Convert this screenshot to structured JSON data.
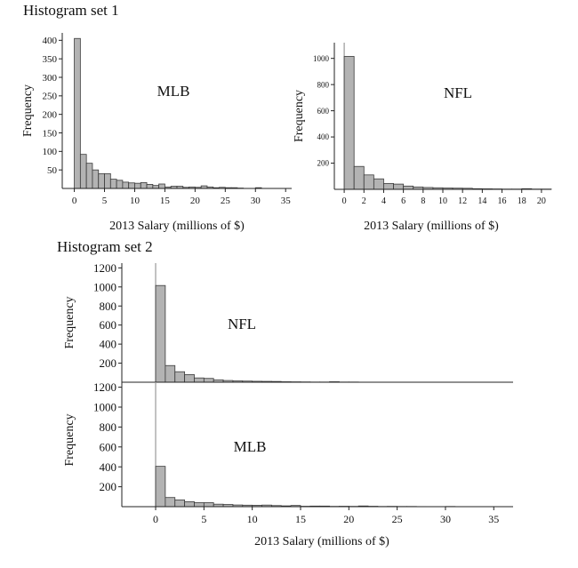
{
  "sets": [
    {
      "title": "Histogram set 1"
    },
    {
      "title": "Histogram set 2"
    }
  ],
  "colors": {
    "bar_fill": "#b3b3b3",
    "bar_stroke": "#3a3a3a",
    "axis": "#222222",
    "zero_line": "#999999"
  },
  "chart_data": [
    {
      "type": "bar",
      "title": "",
      "label": "MLB",
      "xlabel": "2013 Salary (millions of $)",
      "ylabel": "Frequency",
      "bin_width": 1,
      "bin_start": 0,
      "values": [
        405,
        92,
        68,
        50,
        40,
        40,
        25,
        22,
        17,
        15,
        14,
        16,
        11,
        8,
        12,
        4,
        6,
        6,
        3,
        4,
        3,
        7,
        4,
        2,
        3,
        2,
        2,
        1,
        0,
        0,
        2,
        0,
        0,
        0,
        0,
        0
      ],
      "xlim": [
        -2,
        36
      ],
      "ylim": [
        0,
        420
      ],
      "x_ticks": [
        0,
        5,
        10,
        15,
        20,
        25,
        30,
        35
      ],
      "y_ticks": [
        50,
        100,
        150,
        200,
        250,
        300,
        350,
        400
      ]
    },
    {
      "type": "bar",
      "title": "",
      "label": "NFL",
      "xlabel": "2013 Salary (millions of $)",
      "ylabel": "Frequency",
      "bin_width": 1,
      "bin_start": 0,
      "values": [
        1015,
        175,
        110,
        80,
        45,
        40,
        25,
        18,
        14,
        12,
        10,
        9,
        8,
        5,
        4,
        3,
        2,
        2,
        5,
        2,
        2
      ],
      "xlim": [
        -1,
        21
      ],
      "ylim": [
        0,
        1120
      ],
      "x_ticks": [
        0,
        2,
        4,
        6,
        8,
        10,
        12,
        14,
        16,
        18,
        20
      ],
      "y_ticks": [
        200,
        400,
        600,
        800,
        1000
      ]
    },
    {
      "type": "bar",
      "title": "",
      "label": "NFL",
      "xlabel": "",
      "ylabel": "Frequency",
      "bin_width": 1,
      "bin_start": 0,
      "values": [
        1015,
        175,
        110,
        80,
        45,
        40,
        25,
        18,
        14,
        12,
        10,
        9,
        8,
        5,
        4,
        3,
        2,
        2,
        5,
        2,
        2
      ],
      "xlim": [
        -3.5,
        37
      ],
      "ylim": [
        0,
        1250
      ],
      "y_ticks": [
        200,
        400,
        600,
        800,
        1000,
        1200
      ]
    },
    {
      "type": "bar",
      "title": "",
      "label": "MLB",
      "xlabel": "2013 Salary (millions of $)",
      "ylabel": "Frequency",
      "bin_width": 1,
      "bin_start": 0,
      "values": [
        405,
        92,
        68,
        50,
        40,
        40,
        25,
        22,
        17,
        15,
        14,
        16,
        11,
        8,
        12,
        4,
        6,
        6,
        3,
        4,
        3,
        7,
        4,
        2,
        3,
        2,
        2,
        1,
        0,
        0,
        2,
        0,
        0,
        0,
        0,
        0
      ],
      "xlim": [
        -3.5,
        37
      ],
      "ylim": [
        0,
        1250
      ],
      "x_ticks": [
        0,
        5,
        10,
        15,
        20,
        25,
        30,
        35
      ],
      "y_ticks": [
        200,
        400,
        600,
        800,
        1000,
        1200
      ]
    }
  ]
}
